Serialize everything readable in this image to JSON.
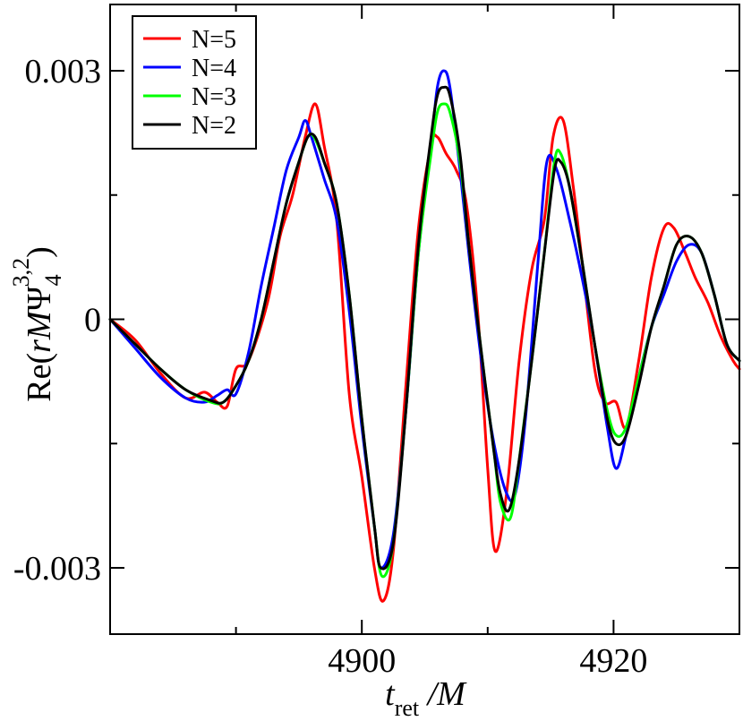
{
  "chart_data": {
    "type": "line",
    "title": "",
    "xlabel": {
      "main": "t",
      "sub": "ret",
      "rest": " /M"
    },
    "ylabel": {
      "prefix": "Re(",
      "italic": "rM",
      "greek": "Ψ",
      "sub": "4",
      "sup": "3,2",
      "suffix": ")"
    },
    "xlim": [
      4880,
      4930
    ],
    "ylim": [
      -0.0038,
      0.0038
    ],
    "x_ticks": [
      {
        "value": 4900,
        "label": "4900"
      },
      {
        "value": 4920,
        "label": "4920"
      }
    ],
    "x_minor_ticks": [
      4890,
      4910,
      4930
    ],
    "y_ticks": [
      {
        "value": 0.003,
        "label": "0.003"
      },
      {
        "value": 0,
        "label": "0"
      },
      {
        "value": -0.003,
        "label": "-0.003"
      }
    ],
    "y_minor_ticks": [
      0.0015,
      -0.0015
    ],
    "grid": false,
    "legend_position": "top-left",
    "series": [
      {
        "name": "N=5",
        "color": "#ff0000",
        "x": [
          4880,
          4882,
          4884,
          4886,
          4887.5,
          4888.5,
          4889.3,
          4890,
          4891,
          4892.5,
          4893.5,
          4894.5,
          4895.5,
          4896.3,
          4897,
          4898,
          4899,
          4900,
          4901,
          4901.7,
          4902.5,
          4903.5,
          4904.5,
          4905.5,
          4906,
          4906.7,
          4907.5,
          4908.3,
          4909.2,
          4910,
          4910.6,
          4911.5,
          4912.5,
          4913.5,
          4914.5,
          4915.2,
          4916,
          4916.8,
          4917.5,
          4918.5,
          4919.3,
          4920.2,
          4921,
          4922,
          4923,
          4924,
          4924.8,
          4925.7,
          4926.5,
          4927.5,
          4928.5,
          4929.5,
          4930
        ],
        "values": [
          0,
          -0.00025,
          -0.00065,
          -0.00095,
          -0.00088,
          -0.001,
          -0.00105,
          -0.0006,
          -0.0005,
          0.0002,
          0.001,
          0.0015,
          0.0022,
          0.0026,
          0.0021,
          0.0012,
          -0.0009,
          -0.0019,
          -0.003,
          -0.0034,
          -0.0028,
          -0.0008,
          0.0011,
          0.0021,
          0.0022,
          0.002,
          0.0018,
          0.0014,
          0.0001,
          -0.0018,
          -0.0028,
          -0.0021,
          -0.0005,
          0.0006,
          0.0012,
          0.0022,
          0.0024,
          0.0016,
          0.0007,
          -0.0006,
          -0.001,
          -0.001,
          -0.0013,
          -0.0005,
          0.0005,
          0.0011,
          0.0011,
          0.0008,
          0.0005,
          0.0002,
          -0.0002,
          -0.0005,
          -0.0006
        ]
      },
      {
        "name": "N=4",
        "color": "#0000ff",
        "x": [
          4880,
          4882,
          4884,
          4886,
          4887.5,
          4888.5,
          4889.3,
          4890,
          4891,
          4892,
          4893,
          4894,
          4895,
          4895.5,
          4896,
          4897,
          4898,
          4899,
          4900,
          4901,
          4901.5,
          4902.5,
          4903.5,
          4904.5,
          4905.5,
          4906,
          4906.5,
          4907,
          4907.8,
          4908.5,
          4909.5,
          4910.5,
          4911.5,
          4912.2,
          4913,
          4914,
          4914.7,
          4915.5,
          4916.5,
          4917.5,
          4918.5,
          4919.5,
          4920.2,
          4921,
          4922,
          4923,
          4924,
          4925,
          4926,
          4927,
          4928,
          4929,
          4930
        ],
        "values": [
          0,
          -0.00035,
          -0.0007,
          -0.00095,
          -0.001,
          -0.00092,
          -0.00085,
          -0.0009,
          -0.0004,
          0.0004,
          0.0011,
          0.0018,
          0.0022,
          0.0024,
          0.0022,
          0.0017,
          0.0012,
          0.0001,
          -0.0013,
          -0.0025,
          -0.003,
          -0.0026,
          -0.0011,
          0.0008,
          0.0021,
          0.0028,
          0.003,
          0.0028,
          0.0018,
          0.0008,
          -0.0005,
          -0.0015,
          -0.0021,
          -0.0021,
          -0.0012,
          0.0007,
          0.0019,
          0.0018,
          0.0012,
          0.0005,
          -0.0003,
          -0.0013,
          -0.0018,
          -0.0014,
          -0.0007,
          -0.0001,
          0.0003,
          0.0007,
          0.0009,
          0.0008,
          0.0003,
          -0.0003,
          -0.0005
        ]
      },
      {
        "name": "N=3",
        "color": "#00ff00",
        "x": [
          4880,
          4882,
          4884,
          4886,
          4888,
          4889,
          4890,
          4891,
          4892,
          4893,
          4894,
          4895,
          4895.7,
          4896.2,
          4897,
          4898,
          4899,
          4900,
          4901,
          4901.6,
          4902.5,
          4903.5,
          4904.5,
          4905.5,
          4906,
          4906.5,
          4907,
          4907.8,
          4908.5,
          4909.5,
          4910.5,
          4911,
          4911.8,
          4912.5,
          4913.5,
          4914.5,
          4915.3,
          4915.8,
          4916.5,
          4917.5,
          4918.5,
          4919.5,
          4920.2,
          4921,
          4922,
          4923,
          4924,
          4925,
          4926,
          4927,
          4928,
          4929,
          4930
        ],
        "values": [
          0,
          -0.0003,
          -0.0006,
          -0.00085,
          -0.001,
          -0.001,
          -0.0008,
          -0.0005,
          0.0,
          0.0007,
          0.0014,
          0.0019,
          0.0022,
          0.0022,
          0.0019,
          0.0014,
          0.0003,
          -0.0012,
          -0.0025,
          -0.0031,
          -0.0027,
          -0.0011,
          0.0008,
          0.002,
          0.0025,
          0.0026,
          0.0025,
          0.0019,
          0.0009,
          -0.0004,
          -0.0016,
          -0.0022,
          -0.0024,
          -0.0017,
          -0.0005,
          0.0008,
          0.0019,
          0.002,
          0.0016,
          0.0007,
          -0.0003,
          -0.0011,
          -0.0014,
          -0.0013,
          -0.0007,
          -0.0001,
          0.0004,
          0.0009,
          0.001,
          0.0008,
          0.0003,
          -0.0003,
          -0.0005
        ]
      },
      {
        "name": "N=2",
        "color": "#000000",
        "x": [
          4880,
          4882,
          4884,
          4886,
          4888,
          4889,
          4890,
          4891,
          4892,
          4893,
          4894,
          4895,
          4895.7,
          4896.3,
          4897,
          4898,
          4899,
          4900,
          4901,
          4901.5,
          4902.5,
          4903.5,
          4904.5,
          4905.5,
          4906,
          4906.5,
          4907,
          4907.8,
          4908.5,
          4909.5,
          4910.5,
          4911,
          4911.7,
          4912.5,
          4913.5,
          4914.5,
          4915.3,
          4915.8,
          4916.5,
          4917.5,
          4918.5,
          4919.5,
          4920.2,
          4921,
          4922,
          4923,
          4924,
          4925,
          4926,
          4927,
          4928,
          4929,
          4930
        ],
        "values": [
          0,
          -0.0003,
          -0.0006,
          -0.00085,
          -0.00098,
          -0.001,
          -0.0008,
          -0.0005,
          0.0,
          0.0007,
          0.0014,
          0.0019,
          0.0022,
          0.0022,
          0.0019,
          0.0014,
          0.0003,
          -0.0012,
          -0.0025,
          -0.003,
          -0.0027,
          -0.0011,
          0.0009,
          0.0022,
          0.0027,
          0.0028,
          0.0027,
          0.002,
          0.0009,
          -0.0004,
          -0.0016,
          -0.0021,
          -0.0023,
          -0.0017,
          -0.0005,
          0.0008,
          0.0018,
          0.0019,
          0.0016,
          0.0007,
          -0.0003,
          -0.0012,
          -0.0015,
          -0.0014,
          -0.0008,
          -0.0001,
          0.0004,
          0.0009,
          0.001,
          0.0008,
          0.0003,
          -0.0003,
          -0.0005
        ]
      }
    ]
  }
}
